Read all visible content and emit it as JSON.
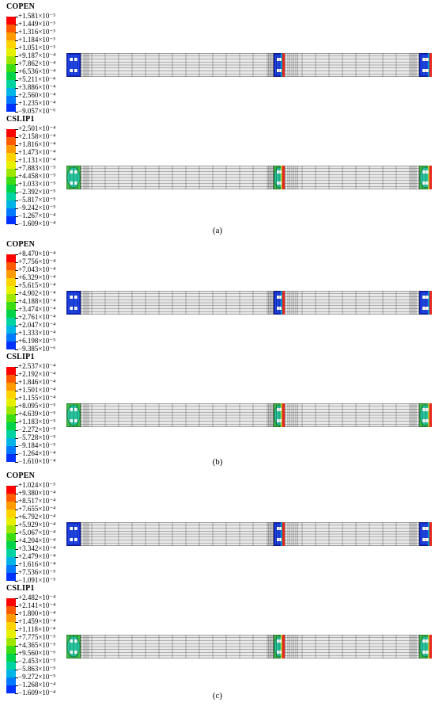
{
  "panels": [
    {
      "caption": "(a)",
      "plots": [
        {
          "variable": "COPEN",
          "scheme": "copen",
          "values": [
            "+1.581×10⁻³",
            "+1.449×10⁻³",
            "+1.316×10⁻³",
            "+1.184×10⁻³",
            "+1.051×10⁻³",
            "+9.187×10⁻⁴",
            "+7.862×10⁻⁴",
            "+6.536×10⁻⁴",
            "+5.211×10⁻⁴",
            "+3.886×10⁻⁴",
            "+2.560×10⁻⁴",
            "+1.235×10⁻⁴",
            "−9.057×10⁻⁶"
          ]
        },
        {
          "variable": "CSLIP1",
          "scheme": "cslip",
          "values": [
            "+2.501×10⁻⁴",
            "+2.158×10⁻⁴",
            "+1.816×10⁻⁴",
            "+1.473×10⁻⁴",
            "+1.131×10⁻⁴",
            "+7.883×10⁻⁵",
            "+4.458×10⁻⁵",
            "+1.033×10⁻⁵",
            "−2.392×10⁻⁵",
            "−5.817×10⁻⁵",
            "−9.242×10⁻⁵",
            "−1.267×10⁻⁴",
            "−1.609×10⁻⁴"
          ]
        }
      ]
    },
    {
      "caption": "(b)",
      "plots": [
        {
          "variable": "COPEN",
          "scheme": "copen",
          "values": [
            "+8.470×10⁻⁴",
            "+7.756×10⁻⁴",
            "+7.043×10⁻⁴",
            "+6.329×10⁻⁴",
            "+5.615×10⁻⁴",
            "+4.902×10⁻⁴",
            "+4.188×10⁻⁴",
            "+3.474×10⁻⁴",
            "+2.761×10⁻⁴",
            "+2.047×10⁻⁴",
            "+1.333×10⁻⁴",
            "+6.198×10⁻⁵",
            "−9.385×10⁻⁶"
          ]
        },
        {
          "variable": "CSLIP1",
          "scheme": "cslip",
          "values": [
            "+2.537×10⁻⁴",
            "+2.192×10⁻⁴",
            "+1.846×10⁻⁴",
            "+1.501×10⁻⁴",
            "+1.155×10⁻⁴",
            "+8.095×10⁻⁵",
            "+4.639×10⁻⁵",
            "+1.183×10⁻⁵",
            "−2.272×10⁻⁵",
            "−5.728×10⁻⁵",
            "−9.184×10⁻⁵",
            "−1.264×10⁻⁴",
            "−1.610×10⁻⁴"
          ]
        }
      ]
    },
    {
      "caption": "(c)",
      "plots": [
        {
          "variable": "COPEN",
          "scheme": "copen",
          "values": [
            "+1.024×10⁻³",
            "+9.380×10⁻⁴",
            "+8.517×10⁻⁴",
            "+7.655×10⁻⁴",
            "+6.792×10⁻⁴",
            "+5.929×10⁻⁴",
            "+5.067×10⁻⁴",
            "+4.204×10⁻⁴",
            "+3.342×10⁻⁴",
            "+2.479×10⁻⁴",
            "+1.616×10⁻⁴",
            "+7.536×10⁻⁵",
            "−1.091×10⁻⁵"
          ]
        },
        {
          "variable": "CSLIP1",
          "scheme": "cslip",
          "values": [
            "+2.482×10⁻⁴",
            "+2.141×10⁻⁴",
            "+1.800×10⁻⁴",
            "+1.459×10⁻⁴",
            "+1.118×10⁻⁴",
            "+7.775×10⁻⁵",
            "+4.365×10⁻⁵",
            "+9.560×10⁻⁶",
            "−2.453×10⁻⁵",
            "−5.863×10⁻⁵",
            "−9.272×10⁻⁵",
            "−1.268×10⁻⁴",
            "−1.609×10⁻⁴"
          ]
        }
      ]
    }
  ],
  "colors": {
    "legend_bands": [
      "#ff0000",
      "#ff5a00",
      "#ff9a00",
      "#ffd200",
      "#e6f000",
      "#9ee600",
      "#3cdc14",
      "#00d24a",
      "#00d2a0",
      "#00b4e6",
      "#0078ff",
      "#0032ff"
    ],
    "mesh_fill": "#e8e8e8",
    "mesh_line": "#333333",
    "copen_block": "#1428d2",
    "cslip_block": "#3cbe46",
    "highlight_red": "#e6281e",
    "highlight_yellow": "#dcdc32"
  }
}
